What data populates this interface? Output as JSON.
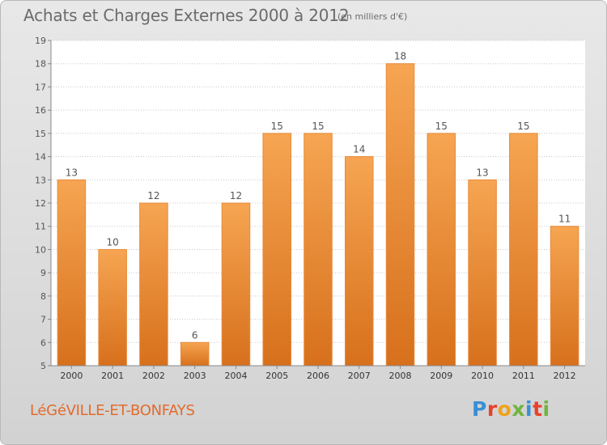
{
  "header": {
    "title": "Achats et Charges Externes 2000 à 2012",
    "subtitle": "(en milliers d'€)"
  },
  "footer": {
    "commune": "LéGéVILLE-ET-BONFAYS",
    "logo_letters": [
      "P",
      "r",
      "o",
      "x",
      "i",
      "t",
      "i"
    ],
    "logo_colors": [
      "#3a8fd6",
      "#e8412c",
      "#f0a21a",
      "#6fb43f",
      "#3a8fd6",
      "#e8412c",
      "#6fb43f"
    ]
  },
  "colors": {
    "bar_top": "#f6a552",
    "bar_bottom": "#d7701c",
    "grid": "#c8c8c8",
    "text": "#555555"
  },
  "chart_data": {
    "type": "bar",
    "title": "Achats et Charges Externes 2000 à 2012",
    "subtitle": "(en milliers d'€)",
    "categories": [
      "2000",
      "2001",
      "2002",
      "2003",
      "2004",
      "2005",
      "2006",
      "2007",
      "2008",
      "2009",
      "2010",
      "2011",
      "2012"
    ],
    "values": [
      13,
      10,
      12,
      6,
      12,
      15,
      15,
      14,
      18,
      15,
      13,
      15,
      11
    ],
    "yticks": [
      "5",
      "6",
      "7",
      "8",
      "9",
      "10",
      "11",
      "12",
      "13",
      "14",
      "15",
      "16",
      "17",
      "18",
      "19"
    ],
    "ylim": [
      5,
      19
    ],
    "grid": true,
    "data_labels": true
  }
}
